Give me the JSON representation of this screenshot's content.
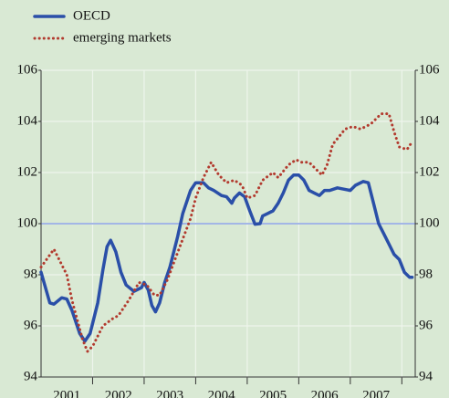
{
  "chart_data": {
    "type": "line",
    "categories": [
      "2001",
      "2002",
      "2003",
      "2004",
      "2005",
      "2006",
      "2007"
    ],
    "xlim": [
      2001,
      2008.26
    ],
    "xticks": [
      2002,
      2003,
      2004,
      2005,
      2006,
      2007,
      2008
    ],
    "ylim": [
      94,
      106
    ],
    "yticks": [
      94,
      96,
      98,
      100,
      102,
      104,
      106
    ],
    "reference_line": 100,
    "grid": true,
    "series": [
      {
        "name": "OECD",
        "color": "#2a4fa8",
        "style": "solid",
        "x": [
          2001.0,
          2001.17,
          2001.25,
          2001.4,
          2001.5,
          2001.6,
          2001.75,
          2001.85,
          2001.95,
          2002.1,
          2002.2,
          2002.28,
          2002.35,
          2002.45,
          2002.55,
          2002.65,
          2002.8,
          2002.95,
          2003.0,
          2003.08,
          2003.15,
          2003.22,
          2003.3,
          2003.4,
          2003.5,
          2003.65,
          2003.75,
          2003.9,
          2004.0,
          2004.15,
          2004.25,
          2004.35,
          2004.5,
          2004.6,
          2004.7,
          2004.75,
          2004.85,
          2004.95,
          2005.05,
          2005.15,
          2005.25,
          2005.3,
          2005.4,
          2005.5,
          2005.6,
          2005.7,
          2005.8,
          2005.9,
          2006.0,
          2006.1,
          2006.2,
          2006.3,
          2006.4,
          2006.5,
          2006.6,
          2006.75,
          2007.0,
          2007.1,
          2007.25,
          2007.35,
          2007.45,
          2007.55,
          2007.65,
          2007.75,
          2007.85,
          2007.95,
          2008.05,
          2008.15,
          2008.2
        ],
        "values": [
          98.1,
          96.9,
          96.85,
          97.1,
          97.05,
          96.6,
          95.7,
          95.4,
          95.7,
          96.9,
          98.2,
          99.1,
          99.35,
          98.9,
          98.1,
          97.6,
          97.35,
          97.5,
          97.7,
          97.4,
          96.8,
          96.55,
          96.9,
          97.7,
          98.3,
          99.5,
          100.4,
          101.3,
          101.6,
          101.6,
          101.4,
          101.3,
          101.1,
          101.05,
          100.8,
          101.0,
          101.2,
          101.05,
          100.5,
          99.98,
          100.0,
          100.3,
          100.4,
          100.5,
          100.8,
          101.2,
          101.7,
          101.9,
          101.9,
          101.7,
          101.3,
          101.2,
          101.1,
          101.3,
          101.3,
          101.4,
          101.3,
          101.5,
          101.65,
          101.6,
          100.8,
          100.0,
          99.6,
          99.2,
          98.8,
          98.6,
          98.1,
          97.9,
          97.9
        ]
      },
      {
        "name": "emerging markets",
        "color": "#b23a2e",
        "style": "dotted",
        "x": [
          2001.0,
          2001.25,
          2001.5,
          2001.6,
          2001.8,
          2001.9,
          2002.0,
          2002.2,
          2002.4,
          2002.5,
          2002.7,
          2002.9,
          2003.05,
          2003.2,
          2003.3,
          2003.45,
          2003.6,
          2003.75,
          2003.9,
          2004.0,
          2004.15,
          2004.3,
          2004.45,
          2004.6,
          2004.75,
          2004.9,
          2005.0,
          2005.15,
          2005.3,
          2005.5,
          2005.6,
          2005.8,
          2005.95,
          2006.05,
          2006.2,
          2006.35,
          2006.45,
          2006.55,
          2006.66,
          2006.9,
          2007.05,
          2007.2,
          2007.4,
          2007.6,
          2007.75,
          2007.85,
          2007.95,
          2008.1,
          2008.2
        ],
        "values": [
          98.3,
          99.0,
          98.0,
          97.0,
          95.5,
          95.0,
          95.2,
          96.0,
          96.3,
          96.4,
          97.0,
          97.7,
          97.6,
          97.2,
          97.2,
          97.8,
          98.6,
          99.4,
          100.2,
          101.0,
          101.8,
          102.4,
          101.9,
          101.6,
          101.7,
          101.5,
          101.0,
          101.1,
          101.7,
          102.0,
          101.8,
          102.3,
          102.5,
          102.4,
          102.4,
          102.1,
          101.9,
          102.3,
          103.1,
          103.7,
          103.8,
          103.7,
          103.9,
          104.3,
          104.3,
          103.6,
          103.0,
          102.9,
          103.2
        ]
      }
    ]
  }
}
